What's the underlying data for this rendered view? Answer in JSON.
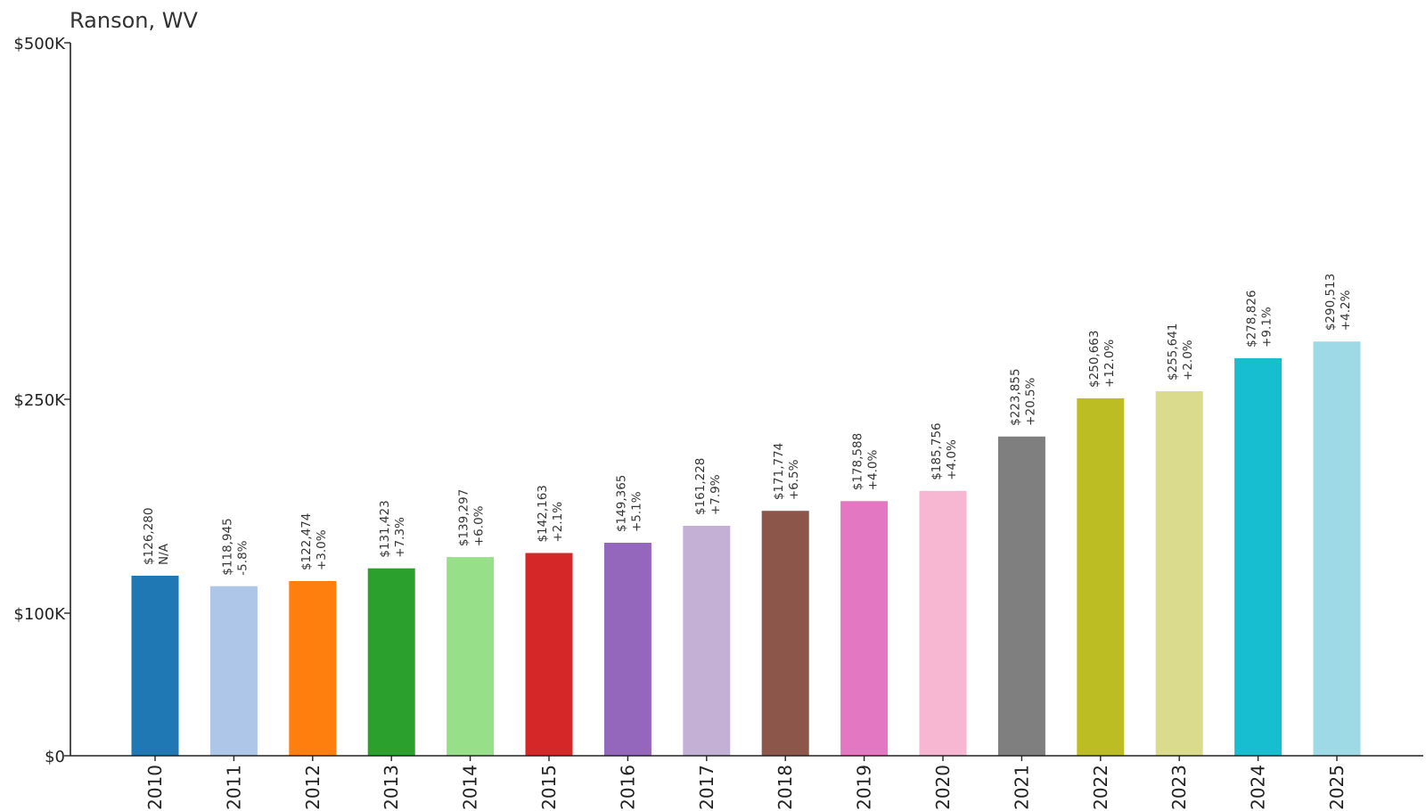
{
  "chart_data": {
    "type": "bar",
    "title": "Ranson, WV",
    "xlabel": "",
    "ylabel": "",
    "ylim": [
      0,
      500000
    ],
    "yticks": [
      {
        "value": 0,
        "label": "$0"
      },
      {
        "value": 100000,
        "label": "$100K"
      },
      {
        "value": 250000,
        "label": "$250K"
      },
      {
        "value": 500000,
        "label": "$500K"
      }
    ],
    "grid": false,
    "categories": [
      "2010",
      "2011",
      "2012",
      "2013",
      "2014",
      "2015",
      "2016",
      "2017",
      "2018",
      "2019",
      "2020",
      "2021",
      "2022",
      "2023",
      "2024",
      "2025"
    ],
    "values": [
      126280,
      118945,
      122474,
      131423,
      139297,
      142163,
      149365,
      161228,
      171774,
      178588,
      185756,
      223855,
      250663,
      255641,
      278826,
      290513
    ],
    "value_labels": [
      "$126,280",
      "$118,945",
      "$122,474",
      "$131,423",
      "$139,297",
      "$142,163",
      "$149,365",
      "$161,228",
      "$171,774",
      "$178,588",
      "$185,756",
      "$223,855",
      "$250,663",
      "$255,641",
      "$278,826",
      "$290,513"
    ],
    "change_labels": [
      "N/A",
      "-5.8%",
      "+3.0%",
      "+7.3%",
      "+6.0%",
      "+2.1%",
      "+5.1%",
      "+7.9%",
      "+6.5%",
      "+4.0%",
      "+4.0%",
      "+20.5%",
      "+12.0%",
      "+2.0%",
      "+9.1%",
      "+4.2%"
    ],
    "colors": [
      "#1f77b4",
      "#aec7e8",
      "#ff7f0e",
      "#2ca02c",
      "#98df8a",
      "#d62728",
      "#9467bd",
      "#c5b0d5",
      "#8c564b",
      "#e377c2",
      "#f7b6d2",
      "#7f7f7f",
      "#bcbd22",
      "#dbdb8d",
      "#17becf",
      "#9edae5"
    ]
  }
}
